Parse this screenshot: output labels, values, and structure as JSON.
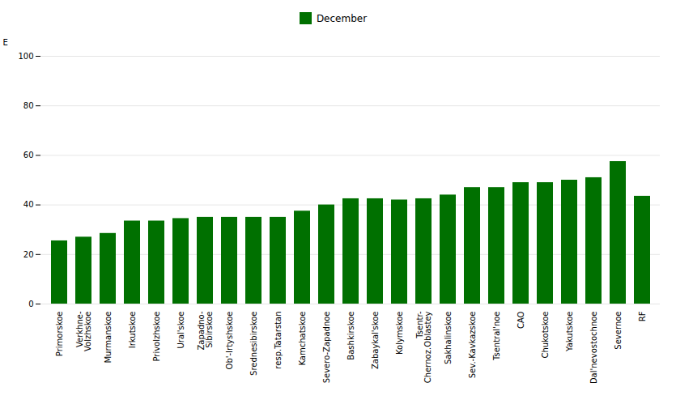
{
  "chart_data": {
    "type": "bar",
    "categories": [
      "Primorskoe",
      "Verkhne-\nVolzhskoe",
      "Murmanskoe",
      "Irkutskoe",
      "Privolzhskoe",
      "Ural'skoe",
      "Zapadno-\nSibirskoe",
      "Ob'-Irtyshskoe",
      "Srednesibirskoe",
      "resp.Tatarstan",
      "Kamchatskoe",
      "Severo-Zapadnoe",
      "Bashkirskoe",
      "Zabaykal'skoe",
      "Kolymskoe",
      "Tsentr-\nChernoz.Oblastey",
      "Sakhalinskoe",
      "Sev.-Kavkazskoe",
      "Tsentral'noe",
      "CAO",
      "Chukotskoe",
      "Yakutskoe",
      "Dal'nevostochnoe",
      "Severnoe",
      "RF"
    ],
    "series": [
      {
        "name": "December",
        "color": "#007000",
        "values": [
          25.5,
          27.0,
          28.5,
          33.5,
          33.5,
          34.5,
          35.0,
          35.0,
          35.0,
          35.0,
          37.5,
          40.0,
          42.5,
          42.5,
          42.0,
          42.5,
          44.0,
          47.0,
          47.0,
          49.0,
          49.0,
          50.0,
          51.0,
          57.5,
          43.5
        ]
      }
    ],
    "ylabel": "E",
    "ylim": [
      0,
      100
    ],
    "yticks": [
      0,
      20,
      40,
      60,
      80,
      100
    ],
    "grid": true,
    "legend": "top"
  }
}
